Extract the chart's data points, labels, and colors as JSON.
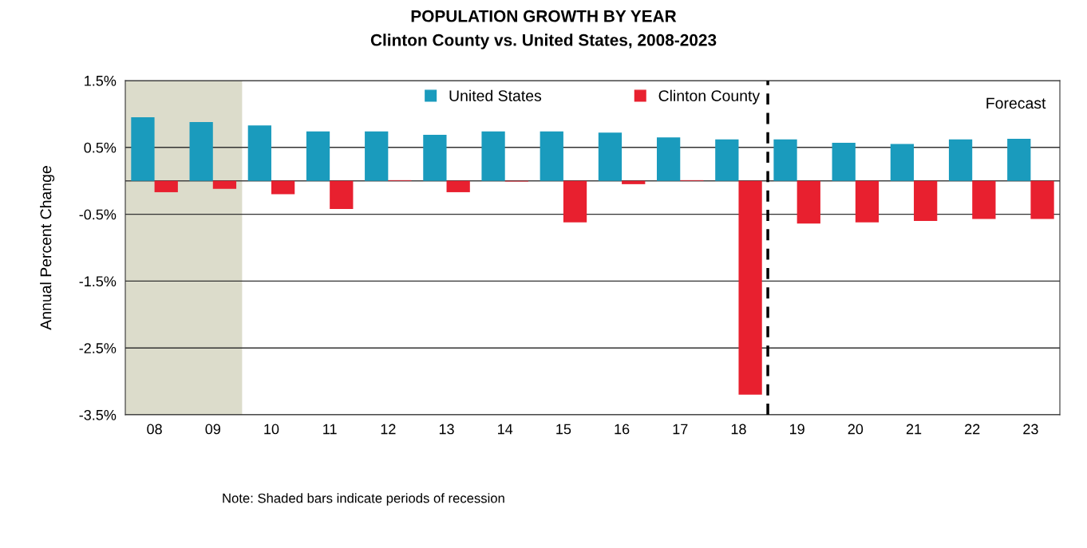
{
  "chart_data": {
    "type": "bar",
    "title": "POPULATION GROWTH BY YEAR",
    "subtitle": "Clinton County vs. United States, 2008-2023",
    "ylabel": "Annual Percent Change",
    "categories": [
      "08",
      "09",
      "10",
      "11",
      "12",
      "13",
      "14",
      "15",
      "16",
      "17",
      "18",
      "19",
      "20",
      "21",
      "22",
      "23"
    ],
    "series": [
      {
        "name": "United States",
        "color": "#1a9bbd",
        "values": [
          0.95,
          0.88,
          0.83,
          0.74,
          0.74,
          0.69,
          0.74,
          0.74,
          0.72,
          0.65,
          0.62,
          0.62,
          0.57,
          0.55,
          0.62,
          0.63
        ]
      },
      {
        "name": "Clinton County",
        "color": "#e8202f",
        "values": [
          -0.17,
          -0.12,
          -0.2,
          -0.42,
          0.01,
          -0.17,
          -0.01,
          -0.62,
          -0.05,
          0.01,
          -3.2,
          -0.64,
          -0.62,
          -0.6,
          -0.57,
          -0.57
        ]
      }
    ],
    "ylim": [
      -3.5,
      1.5
    ],
    "yticks": [
      {
        "value": -3.5,
        "label": "-3.5%"
      },
      {
        "value": -2.5,
        "label": "-2.5%"
      },
      {
        "value": -1.5,
        "label": "-1.5%"
      },
      {
        "value": -0.5,
        "label": "-0.5%"
      },
      {
        "value": 0.5,
        "label": "0.5%"
      },
      {
        "value": 1.5,
        "label": "1.5%"
      }
    ],
    "grid": "y",
    "legend": "top",
    "bands": [
      {
        "axis": "x",
        "from": "08",
        "to": "09",
        "color": "#dcdccb"
      }
    ],
    "ref_lines": [
      {
        "axis": "x",
        "value": "18",
        "line_style": "dashed",
        "color": "#000000"
      }
    ],
    "annotations": [
      "Forecast",
      "Note: Shaded bars indicate periods of recession"
    ]
  }
}
